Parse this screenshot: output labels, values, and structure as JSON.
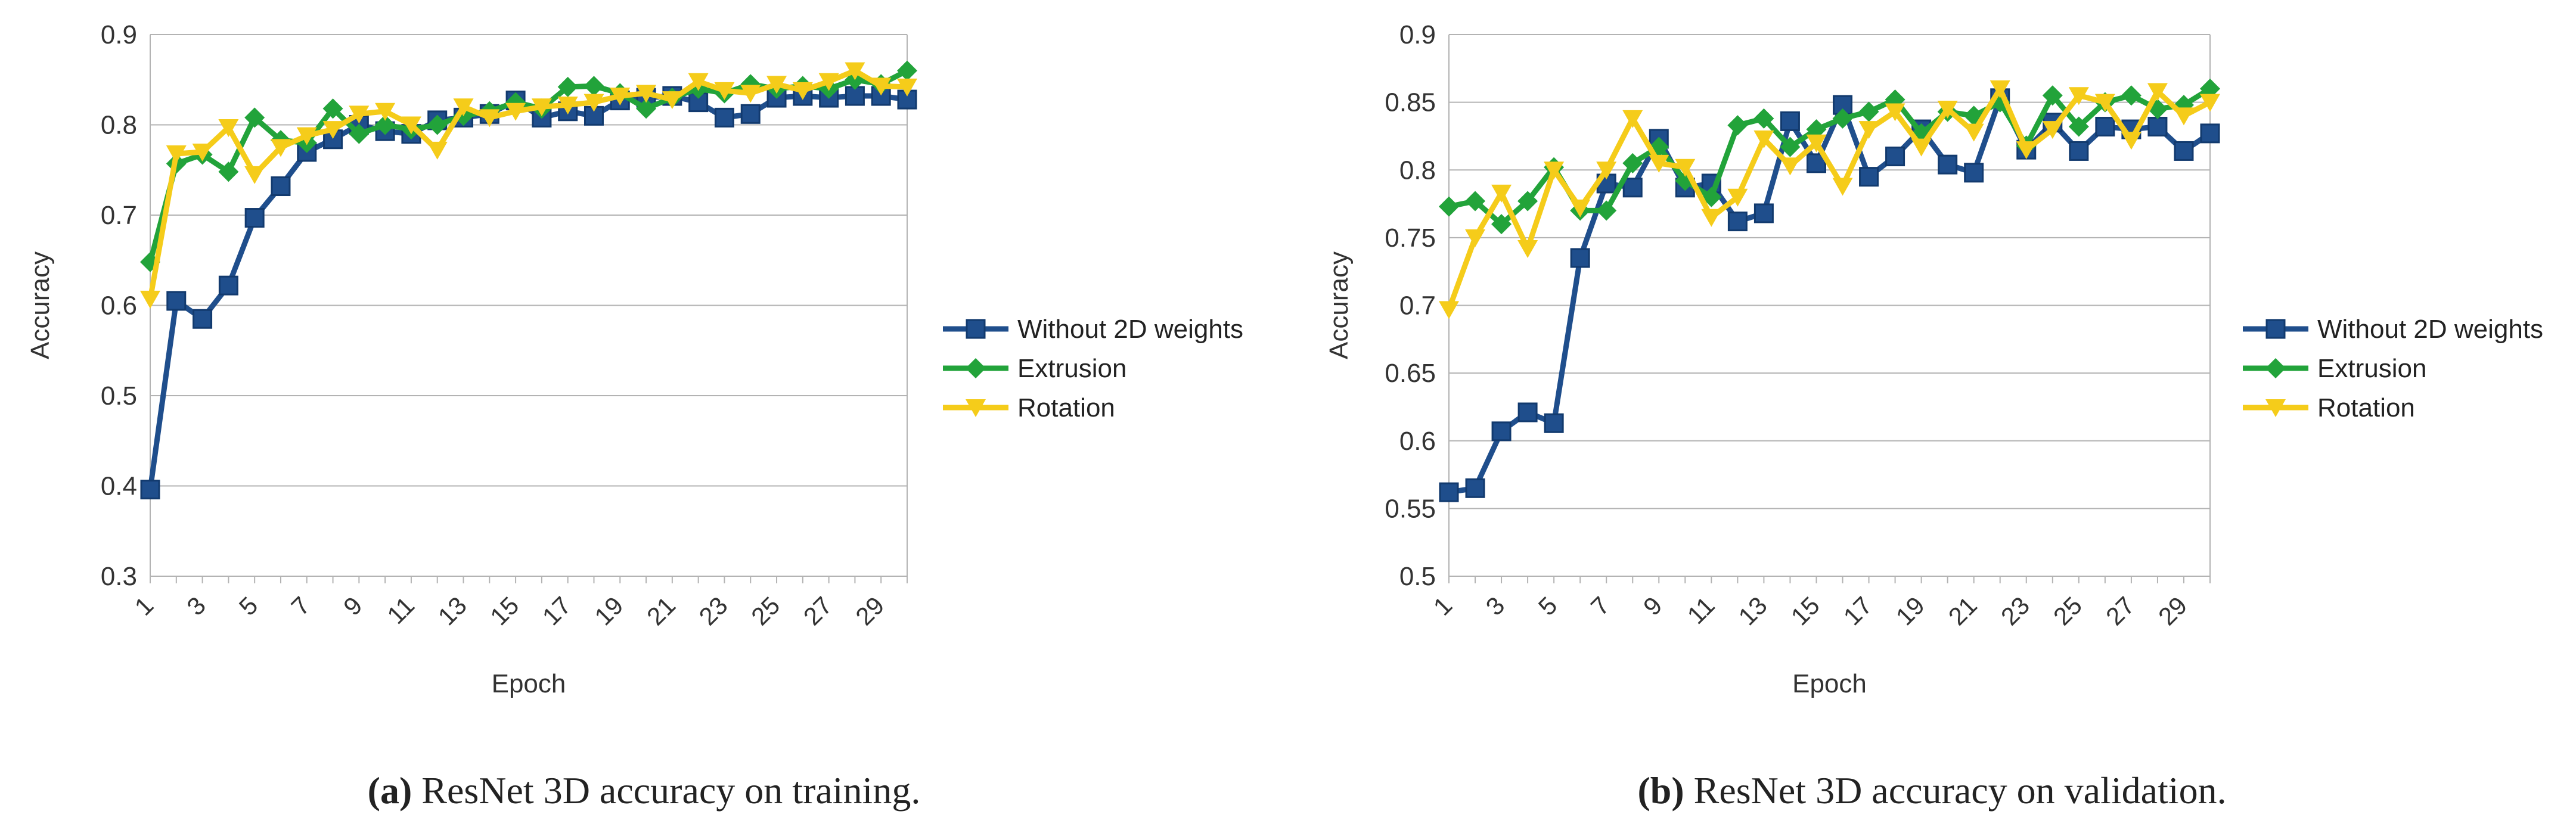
{
  "colors": {
    "without": "#1f4e8c",
    "extrusion": "#22a33a",
    "rotation": "#f5cc1a",
    "grid": "#b3b3b3"
  },
  "chart_data": [
    {
      "type": "line",
      "xlabel": "Epoch",
      "ylabel": "Accuracy",
      "ylim": [
        0.3,
        0.9
      ],
      "yticks": [
        "0.3",
        "0.4",
        "0.5",
        "0.6",
        "0.7",
        "0.8",
        "0.9"
      ],
      "xtick_labels": [
        "1",
        "3",
        "5",
        "7",
        "9",
        "11",
        "13",
        "15",
        "17",
        "19",
        "21",
        "23",
        "25",
        "27",
        "29"
      ],
      "x": [
        1,
        2,
        3,
        4,
        5,
        6,
        7,
        8,
        9,
        10,
        11,
        12,
        13,
        14,
        15,
        16,
        17,
        18,
        19,
        20,
        21,
        22,
        23,
        24,
        25,
        26,
        27,
        28,
        29,
        30
      ],
      "series": [
        {
          "name": "Without 2D weights",
          "marker": "square",
          "values": [
            0.396,
            0.605,
            0.585,
            0.622,
            0.697,
            0.732,
            0.77,
            0.784,
            0.8,
            0.793,
            0.79,
            0.805,
            0.808,
            0.812,
            0.827,
            0.808,
            0.815,
            0.81,
            0.827,
            0.83,
            0.832,
            0.825,
            0.808,
            0.812,
            0.83,
            0.832,
            0.83,
            0.832,
            0.832,
            0.828
          ]
        },
        {
          "name": "Extrusion",
          "marker": "diamond",
          "values": [
            0.648,
            0.757,
            0.767,
            0.748,
            0.808,
            0.783,
            0.78,
            0.818,
            0.79,
            0.8,
            0.795,
            0.8,
            0.81,
            0.815,
            0.825,
            0.818,
            0.842,
            0.843,
            0.835,
            0.818,
            0.83,
            0.84,
            0.835,
            0.845,
            0.84,
            0.843,
            0.84,
            0.85,
            0.845,
            0.86
          ]
        },
        {
          "name": "Rotation",
          "marker": "triangle-down",
          "values": [
            0.607,
            0.768,
            0.77,
            0.797,
            0.745,
            0.775,
            0.788,
            0.795,
            0.812,
            0.815,
            0.8,
            0.772,
            0.82,
            0.808,
            0.815,
            0.82,
            0.822,
            0.825,
            0.832,
            0.835,
            0.828,
            0.848,
            0.838,
            0.835,
            0.845,
            0.838,
            0.848,
            0.86,
            0.843,
            0.842
          ]
        }
      ]
    },
    {
      "type": "line",
      "xlabel": "Epoch",
      "ylabel": "Accuracy",
      "ylim": [
        0.5,
        0.9
      ],
      "yticks": [
        "0.5",
        "0.55",
        "0.6",
        "0.65",
        "0.7",
        "0.75",
        "0.8",
        "0.85",
        "0.9"
      ],
      "xtick_labels": [
        "1",
        "3",
        "5",
        "7",
        "9",
        "11",
        "13",
        "15",
        "17",
        "19",
        "21",
        "23",
        "25",
        "27",
        "29"
      ],
      "x": [
        1,
        2,
        3,
        4,
        5,
        6,
        7,
        8,
        9,
        10,
        11,
        12,
        13,
        14,
        15,
        16,
        17,
        18,
        19,
        20,
        21,
        22,
        23,
        24,
        25,
        26,
        27,
        28,
        29,
        30
      ],
      "series": [
        {
          "name": "Without 2D weights",
          "marker": "square",
          "values": [
            0.562,
            0.565,
            0.607,
            0.621,
            0.613,
            0.735,
            0.79,
            0.787,
            0.823,
            0.787,
            0.79,
            0.762,
            0.768,
            0.836,
            0.805,
            0.848,
            0.795,
            0.81,
            0.83,
            0.804,
            0.798,
            0.853,
            0.815,
            0.835,
            0.814,
            0.832,
            0.83,
            0.832,
            0.814,
            0.827
          ]
        },
        {
          "name": "Extrusion",
          "marker": "diamond",
          "values": [
            0.773,
            0.777,
            0.76,
            0.777,
            0.802,
            0.77,
            0.77,
            0.805,
            0.817,
            0.792,
            0.78,
            0.833,
            0.838,
            0.817,
            0.83,
            0.838,
            0.843,
            0.852,
            0.827,
            0.843,
            0.84,
            0.85,
            0.818,
            0.855,
            0.832,
            0.85,
            0.855,
            0.845,
            0.848,
            0.86
          ]
        },
        {
          "name": "Rotation",
          "marker": "triangle-down",
          "values": [
            0.697,
            0.75,
            0.783,
            0.742,
            0.8,
            0.772,
            0.8,
            0.838,
            0.805,
            0.802,
            0.765,
            0.78,
            0.823,
            0.803,
            0.82,
            0.788,
            0.83,
            0.843,
            0.817,
            0.845,
            0.828,
            0.86,
            0.815,
            0.83,
            0.855,
            0.85,
            0.822,
            0.858,
            0.84,
            0.85
          ]
        }
      ]
    }
  ],
  "captions": [
    {
      "label": "(a)",
      "text": "ResNet 3D accuracy on training."
    },
    {
      "label": "(b)",
      "text": "ResNet 3D accuracy on validation."
    }
  ]
}
